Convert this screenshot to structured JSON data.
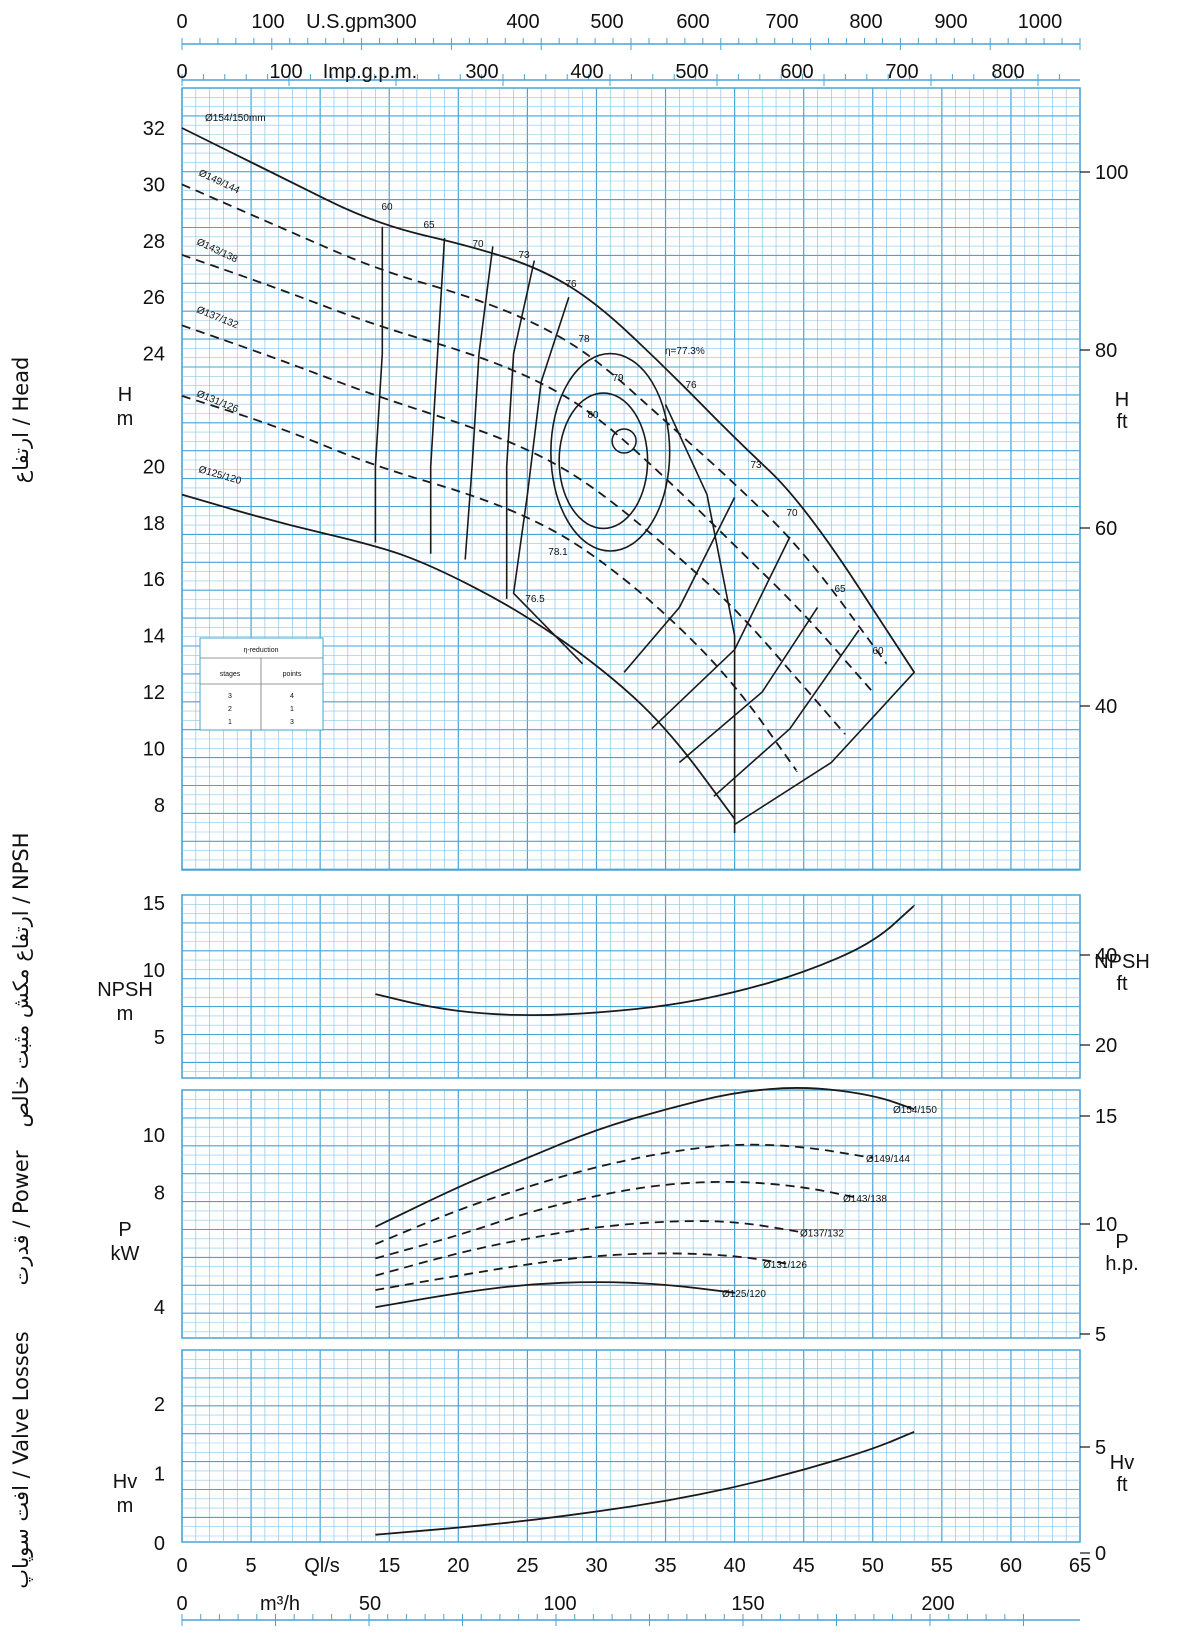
{
  "chart_data": [
    {
      "type": "line",
      "panel": "head",
      "ylabel_fa": "ارتفاع / Head",
      "y_left_label_top": "H",
      "y_left_label_bottom": "m",
      "y_right_label_top": "H",
      "y_right_label_bottom": "ft",
      "y_left_ticks": [
        "32",
        "30",
        "28",
        "26",
        "24",
        "20",
        "18",
        "16",
        "14",
        "12",
        "10",
        "8"
      ],
      "y_left_tick_values": [
        32,
        30,
        28,
        26,
        24,
        20,
        18,
        16,
        14,
        12,
        10,
        8
      ],
      "y_right_ticks": [
        "100",
        "80",
        "60",
        "40"
      ],
      "ylim": [
        6,
        34
      ],
      "series": [
        {
          "name": "Ø154/150mm",
          "style": "solid",
          "x": [
            0,
            7,
            14,
            21,
            26,
            30,
            35,
            40,
            45,
            53
          ],
          "y": [
            32,
            30.3,
            28.6,
            27.8,
            27.0,
            25.8,
            23.5,
            21.0,
            18.7,
            12.7
          ]
        },
        {
          "name": "Ø149/144",
          "style": "dashed",
          "x": [
            0,
            7,
            14,
            21,
            26,
            30,
            35,
            40,
            45,
            51
          ],
          "y": [
            30,
            28.5,
            27.0,
            26.0,
            25.0,
            23.8,
            21.6,
            19.4,
            17.0,
            13.0
          ]
        },
        {
          "name": "Ø143/138",
          "style": "dashed",
          "x": [
            0,
            7,
            14,
            21,
            26,
            30,
            35,
            40,
            45,
            50
          ],
          "y": [
            27.5,
            26.3,
            25.0,
            24.0,
            23.0,
            21.8,
            19.6,
            17.2,
            14.8,
            12.0
          ]
        },
        {
          "name": "Ø137/132",
          "style": "dashed",
          "x": [
            0,
            7,
            14,
            21,
            26,
            30,
            35,
            40,
            45,
            48
          ],
          "y": [
            25,
            23.8,
            22.5,
            21.4,
            20.4,
            19.2,
            17.2,
            15.0,
            12.2,
            10.5
          ]
        },
        {
          "name": "Ø131/126",
          "style": "dashed",
          "x": [
            0,
            7,
            14,
            21,
            26,
            30,
            35,
            40,
            44.5
          ],
          "y": [
            22.5,
            21.4,
            20.0,
            19.0,
            18.0,
            16.8,
            14.8,
            12.3,
            9.2
          ]
        },
        {
          "name": "Ø125/120",
          "style": "solid",
          "x": [
            0,
            7,
            14,
            18,
            24,
            30,
            35,
            40
          ],
          "y": [
            19.0,
            18.0,
            17.2,
            16.5,
            15.0,
            13.0,
            10.8,
            7.5
          ]
        }
      ],
      "efficiency_labels": [
        "60",
        "65",
        "70",
        "73",
        "76",
        "78",
        "79",
        "80",
        "76",
        "73",
        "70",
        "65",
        "60",
        "78.1",
        "76.5"
      ],
      "eta_best": "η=77.3%",
      "reduction_table": {
        "title": "η-reduction",
        "headers": [
          "stages",
          "points"
        ],
        "rows": [
          [
            "3",
            "4"
          ],
          [
            "2",
            "1"
          ],
          [
            "1",
            "3"
          ]
        ]
      }
    },
    {
      "type": "line",
      "panel": "npsh",
      "ylabel_fa": "ارتفاع مکش مثبت خالص / NPSH",
      "y_left_label_top": "NPSH",
      "y_left_label_bottom": "m",
      "y_right_label_top": "NPSH",
      "y_right_label_bottom": "ft",
      "y_left_ticks": [
        "15",
        "10",
        "5"
      ],
      "y_right_ticks": [
        "40",
        "20"
      ],
      "ylim": [
        3,
        16
      ],
      "series": [
        {
          "name": "",
          "x": [
            14,
            18,
            22,
            26,
            30,
            35,
            40,
            45,
            50,
            53
          ],
          "y": [
            8.2,
            7.2,
            6.7,
            6.6,
            6.8,
            7.3,
            8.3,
            9.8,
            12.0,
            14.8
          ]
        }
      ]
    },
    {
      "type": "line",
      "panel": "power",
      "ylabel_fa": "قدرت / Power",
      "y_left_label_top": "P",
      "y_left_label_bottom": "kW",
      "y_right_label_top": "P",
      "y_right_label_bottom": "h.p.",
      "y_left_ticks": [
        "10",
        "8",
        "4"
      ],
      "y_right_ticks": [
        "15",
        "10",
        "5"
      ],
      "ylim": [
        3,
        12.4
      ],
      "series": [
        {
          "name": "Ø154/150",
          "style": "solid",
          "x": [
            14,
            20,
            25,
            30,
            35,
            40,
            45,
            50,
            53
          ],
          "y": [
            6.8,
            8.2,
            9.2,
            10.2,
            10.9,
            11.5,
            11.7,
            11.4,
            10.9
          ]
        },
        {
          "name": "Ø149/144",
          "style": "dashed",
          "x": [
            14,
            20,
            25,
            30,
            35,
            40,
            45,
            50
          ],
          "y": [
            6.2,
            7.4,
            8.2,
            8.9,
            9.4,
            9.7,
            9.6,
            9.2
          ]
        },
        {
          "name": "Ø143/138",
          "style": "dashed",
          "x": [
            14,
            20,
            25,
            30,
            35,
            40,
            45,
            49
          ],
          "y": [
            5.7,
            6.5,
            7.3,
            7.9,
            8.3,
            8.4,
            8.2,
            7.8
          ]
        },
        {
          "name": "Ø137/132",
          "style": "dashed",
          "x": [
            14,
            20,
            25,
            30,
            35,
            40,
            45
          ],
          "y": [
            5.1,
            5.9,
            6.4,
            6.8,
            7.0,
            7.0,
            6.6
          ]
        },
        {
          "name": "Ø131/126",
          "style": "dashed",
          "x": [
            14,
            20,
            25,
            30,
            35,
            40,
            44
          ],
          "y": [
            4.6,
            5.1,
            5.5,
            5.8,
            5.9,
            5.8,
            5.5
          ]
        },
        {
          "name": "Ø125/120",
          "style": "solid",
          "x": [
            14,
            20,
            25,
            30,
            35,
            40
          ],
          "y": [
            4.0,
            4.5,
            4.8,
            4.9,
            4.8,
            4.5
          ]
        }
      ]
    },
    {
      "type": "line",
      "panel": "valve_losses",
      "ylabel_fa": "افت سوپاپ / Valve Losses",
      "y_left_label_top": "Hv",
      "y_left_label_bottom": "m",
      "y_right_label_top": "Hv",
      "y_right_label_bottom": "ft",
      "y_left_ticks": [
        "2",
        "1",
        "0"
      ],
      "y_right_ticks": [
        "5",
        "0"
      ],
      "ylim": [
        0,
        2.1
      ],
      "series": [
        {
          "name": "",
          "x": [
            14,
            20,
            25,
            30,
            35,
            40,
            45,
            50,
            53
          ],
          "y": [
            0.12,
            0.22,
            0.32,
            0.45,
            0.6,
            0.8,
            1.05,
            1.35,
            1.6
          ]
        }
      ]
    }
  ],
  "x_axes": {
    "top_usgpm_label": "U.S.gpm",
    "top_usgpm_ticks": [
      "0",
      "100",
      "300",
      "400",
      "500",
      "600",
      "700",
      "800",
      "900",
      "1000"
    ],
    "top_imp_label": "Imp.g.p.m.",
    "top_imp_ticks": [
      "0",
      "100",
      "300",
      "400",
      "500",
      "600",
      "700",
      "800"
    ],
    "bottom_ls_label": "Ql/s",
    "bottom_ls_ticks": [
      "0",
      "5",
      "15",
      "20",
      "25",
      "30",
      "35",
      "40",
      "45",
      "50",
      "55",
      "60",
      "65"
    ],
    "bottom_m3h_label": "m³/h",
    "bottom_m3h_ticks": [
      "0",
      "50",
      "100",
      "150",
      "200"
    ],
    "xlim": [
      0,
      65
    ]
  },
  "colors": {
    "grid": "#4aa3d6",
    "grid_minor": "#8cc6e8",
    "curve": "#1a1a1a",
    "background": "#ffffff"
  }
}
